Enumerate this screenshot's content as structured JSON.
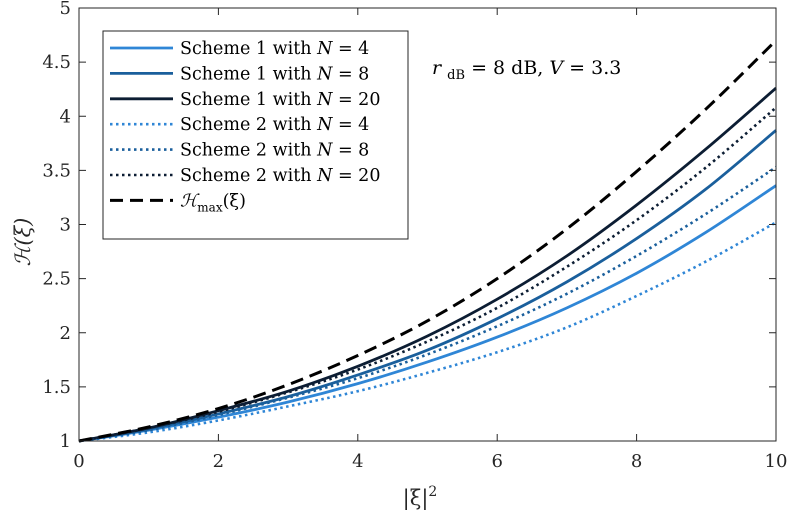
{
  "chart_data": {
    "type": "line",
    "title": "",
    "xlabel": "|ξ|",
    "xlabel_superscript": "2",
    "ylabel": "ℋ(ξ)",
    "xlim": [
      0,
      10
    ],
    "ylim": [
      1,
      5
    ],
    "xticks": [
      0,
      2,
      4,
      6,
      8,
      10
    ],
    "yticks": [
      1,
      1.5,
      2,
      2.5,
      3,
      3.5,
      4,
      4.5,
      5
    ],
    "ytick_labels": [
      "1",
      "1.5",
      "2",
      "2.5",
      "3",
      "3.5",
      "4",
      "4.5",
      "5"
    ],
    "grid": false,
    "legend_position": "top-left",
    "annotation": {
      "r_symbol": "r",
      "r_subscript": "dB",
      "text_after_r": " = 8 dB, ",
      "v_symbol": "V",
      "text_after_v": " = 3.3"
    },
    "x": [
      0,
      1,
      2,
      3,
      4,
      5,
      6,
      7,
      8,
      9,
      10
    ],
    "series": [
      {
        "name_prefix": "Scheme 1 with ",
        "name_var": "N",
        "name_value": " = 4",
        "color": "#2f86d6",
        "style": "solid",
        "values": [
          1.0,
          1.1,
          1.22,
          1.36,
          1.53,
          1.73,
          1.96,
          2.23,
          2.55,
          2.93,
          3.36
        ]
      },
      {
        "name_prefix": "Scheme 1 with ",
        "name_var": "N",
        "name_value": " = 8",
        "color": "#1a5f9c",
        "style": "solid",
        "values": [
          1.0,
          1.11,
          1.25,
          1.41,
          1.61,
          1.84,
          2.13,
          2.47,
          2.87,
          3.33,
          3.87
        ]
      },
      {
        "name_prefix": "Scheme 1 with ",
        "name_var": "N",
        "name_value": " = 20",
        "color": "#0c1d33",
        "style": "solid",
        "values": [
          1.0,
          1.12,
          1.28,
          1.46,
          1.69,
          1.97,
          2.31,
          2.71,
          3.18,
          3.7,
          4.26
        ]
      },
      {
        "name_prefix": "Scheme 2 with ",
        "name_var": "N",
        "name_value": " = 4",
        "color": "#2f86d6",
        "style": "dotted",
        "values": [
          1.0,
          1.08,
          1.19,
          1.32,
          1.46,
          1.63,
          1.82,
          2.05,
          2.34,
          2.66,
          3.02
        ]
      },
      {
        "name_prefix": "Scheme 2 with ",
        "name_var": "N",
        "name_value": " = 8",
        "color": "#1a5f9c",
        "style": "dotted",
        "values": [
          1.0,
          1.1,
          1.24,
          1.4,
          1.58,
          1.8,
          2.06,
          2.36,
          2.71,
          3.1,
          3.53
        ]
      },
      {
        "name_prefix": "Scheme 2 with ",
        "name_var": "N",
        "name_value": " = 20",
        "color": "#0c1d33",
        "style": "dotted",
        "values": [
          1.0,
          1.12,
          1.27,
          1.45,
          1.66,
          1.92,
          2.23,
          2.61,
          3.04,
          3.53,
          4.08
        ]
      },
      {
        "name_prefix": "ℋ",
        "name_var": "",
        "name_value": "(ξ)",
        "name_subscript": "max",
        "color": "#000000",
        "style": "dashed",
        "values": [
          1.0,
          1.13,
          1.3,
          1.52,
          1.79,
          2.11,
          2.5,
          2.96,
          3.49,
          4.07,
          4.7
        ]
      }
    ]
  }
}
